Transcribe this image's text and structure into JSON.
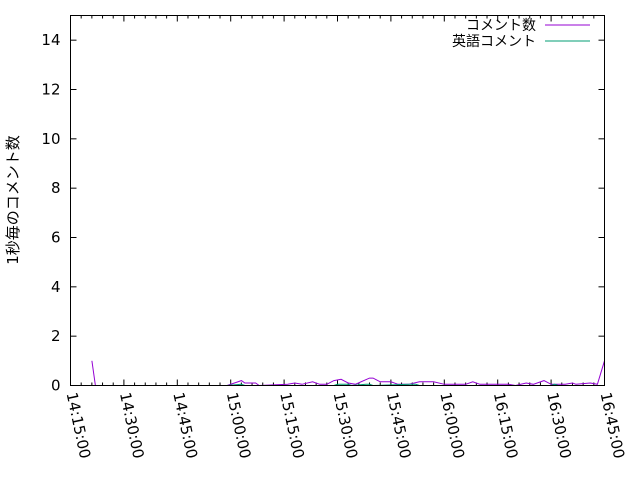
{
  "chart_data": {
    "type": "line",
    "title": "",
    "xlabel": "",
    "ylabel": "1秒毎のコメント数",
    "xlim": [
      "14:15:00",
      "16:45:00"
    ],
    "ylim": [
      0,
      15
    ],
    "x_ticks": [
      "14:15:00",
      "14:30:00",
      "14:45:00",
      "15:00:00",
      "15:15:00",
      "15:30:00",
      "15:45:00",
      "16:00:00",
      "16:15:00",
      "16:30:00",
      "16:45:00"
    ],
    "y_ticks": [
      "0",
      "2",
      "4",
      "6",
      "8",
      "10",
      "12",
      "14"
    ],
    "grid": false,
    "legend_position": "top-right",
    "series": [
      {
        "name": "コメント数",
        "color": "#9400d3",
        "points": [
          [
            "14:21",
            1
          ],
          [
            "14:22",
            0
          ],
          [
            "14:59",
            0
          ],
          [
            "15:03",
            0.2
          ],
          [
            "15:04",
            0.1
          ],
          [
            "15:07",
            0.1
          ],
          [
            "15:08",
            0
          ],
          [
            "15:16",
            0.05
          ],
          [
            "15:18",
            0.1
          ],
          [
            "15:20",
            0.05
          ],
          [
            "15:23",
            0.15
          ],
          [
            "15:25",
            0.05
          ],
          [
            "15:27",
            0.05
          ],
          [
            "15:29",
            0.2
          ],
          [
            "15:31",
            0.25
          ],
          [
            "15:33",
            0.1
          ],
          [
            "15:35",
            0.05
          ],
          [
            "15:39",
            0.3
          ],
          [
            "15:40",
            0.3
          ],
          [
            "15:42",
            0.15
          ],
          [
            "15:45",
            0.15
          ],
          [
            "15:47",
            0.05
          ],
          [
            "15:50",
            0.05
          ],
          [
            "15:53",
            0.15
          ],
          [
            "15:57",
            0.15
          ],
          [
            "16:00",
            0.05
          ],
          [
            "16:06",
            0.05
          ],
          [
            "16:08",
            0.15
          ],
          [
            "16:10",
            0.05
          ],
          [
            "16:18",
            0.05
          ],
          [
            "16:20",
            0
          ],
          [
            "16:23",
            0.1
          ],
          [
            "16:25",
            0.05
          ],
          [
            "16:28",
            0.2
          ],
          [
            "16:30",
            0.05
          ],
          [
            "16:34",
            0.05
          ],
          [
            "16:36",
            0.1
          ],
          [
            "16:37",
            0.05
          ],
          [
            "16:41",
            0.1
          ],
          [
            "16:43",
            0.05
          ],
          [
            "16:45",
            1
          ]
        ]
      },
      {
        "name": "英語コメント",
        "color": "#009e73",
        "points": [
          [
            "14:59",
            0
          ],
          [
            "15:03",
            0.05
          ],
          [
            "15:04",
            0
          ],
          [
            "15:29",
            0
          ],
          [
            "15:30",
            0.05
          ],
          [
            "15:33",
            0.05
          ],
          [
            "15:34",
            0
          ],
          [
            "15:38",
            0.05
          ],
          [
            "15:39",
            0.05
          ],
          [
            "15:40",
            0
          ],
          [
            "15:50",
            0.05
          ],
          [
            "15:52",
            0.05
          ],
          [
            "15:53",
            0
          ],
          [
            "16:30",
            0
          ],
          [
            "16:31",
            0.05
          ],
          [
            "16:32",
            0
          ],
          [
            "16:45",
            0
          ]
        ]
      }
    ]
  }
}
